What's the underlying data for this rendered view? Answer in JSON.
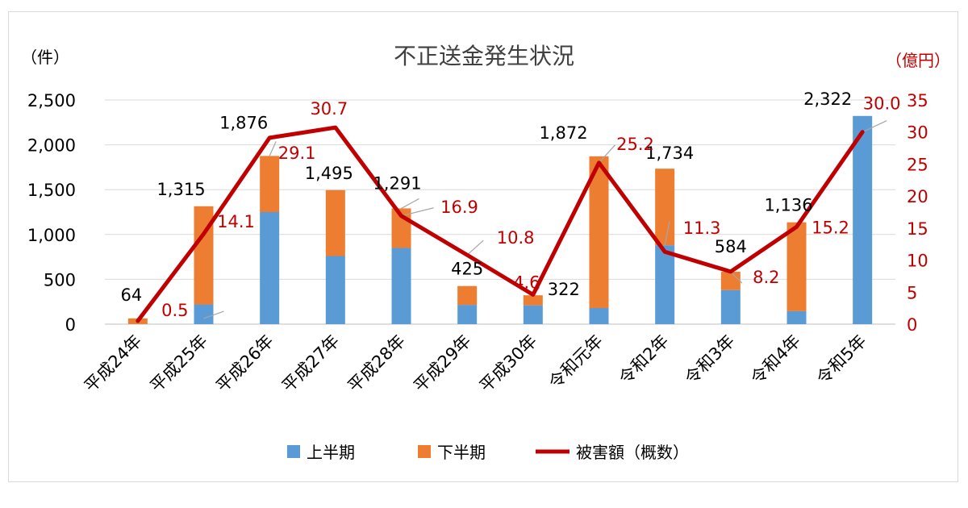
{
  "chart_data": {
    "type": "bar",
    "title": "不正送金発生状況",
    "left_unit": "（件）",
    "right_unit": "（億円）",
    "categories": [
      "平成24年",
      "平成25年",
      "平成26年",
      "平成27年",
      "平成28年",
      "平成29年",
      "平成30年",
      "令和元年",
      "令和2年",
      "令和3年",
      "令和4年",
      "令和5年"
    ],
    "series": [
      {
        "name": "上半期",
        "axis": "left",
        "stacked": true,
        "color": "#5b9bd5",
        "values": [
          2,
          220,
          1250,
          760,
          850,
          215,
          210,
          180,
          880,
          380,
          145,
          2322
        ]
      },
      {
        "name": "下半期",
        "axis": "left",
        "stacked": true,
        "color": "#ed7d31",
        "values": [
          62,
          1095,
          626,
          735,
          441,
          210,
          112,
          1692,
          854,
          204,
          991,
          0
        ]
      },
      {
        "name": "被害額（概数）",
        "axis": "right",
        "type": "line",
        "color": "#c00000",
        "values": [
          0.5,
          14.1,
          29.1,
          30.7,
          16.9,
          10.8,
          4.6,
          25.2,
          11.3,
          8.2,
          15.2,
          30.0
        ]
      }
    ],
    "totals": [
      64,
      1315,
      1876,
      1495,
      1291,
      425,
      322,
      1872,
      1734,
      584,
      1136,
      2322
    ],
    "total_labels": [
      "64",
      "1,315",
      "1,876",
      "1,495",
      "1,291",
      "425",
      "322",
      "1,872",
      "1,734",
      "584",
      "1,136",
      "2,322"
    ],
    "line_labels": [
      "0.5",
      "14.1",
      "29.1",
      "30.7",
      "16.9",
      "10.8",
      "4.6",
      "25.2",
      "11.3",
      "8.2",
      "15.2",
      "30.0"
    ],
    "left_ticks": [
      "0",
      "500",
      "1,000",
      "1,500",
      "2,000",
      "2,500"
    ],
    "left_tick_values": [
      0,
      500,
      1000,
      1500,
      2000,
      2500
    ],
    "right_ticks": [
      "0",
      "5",
      "10",
      "15",
      "20",
      "25",
      "30",
      "35"
    ],
    "right_tick_values": [
      0,
      5,
      10,
      15,
      20,
      25,
      30,
      35
    ],
    "ylim_left": [
      0,
      2500
    ],
    "ylim_right": [
      0,
      35
    ],
    "legend_position": "bottom"
  }
}
